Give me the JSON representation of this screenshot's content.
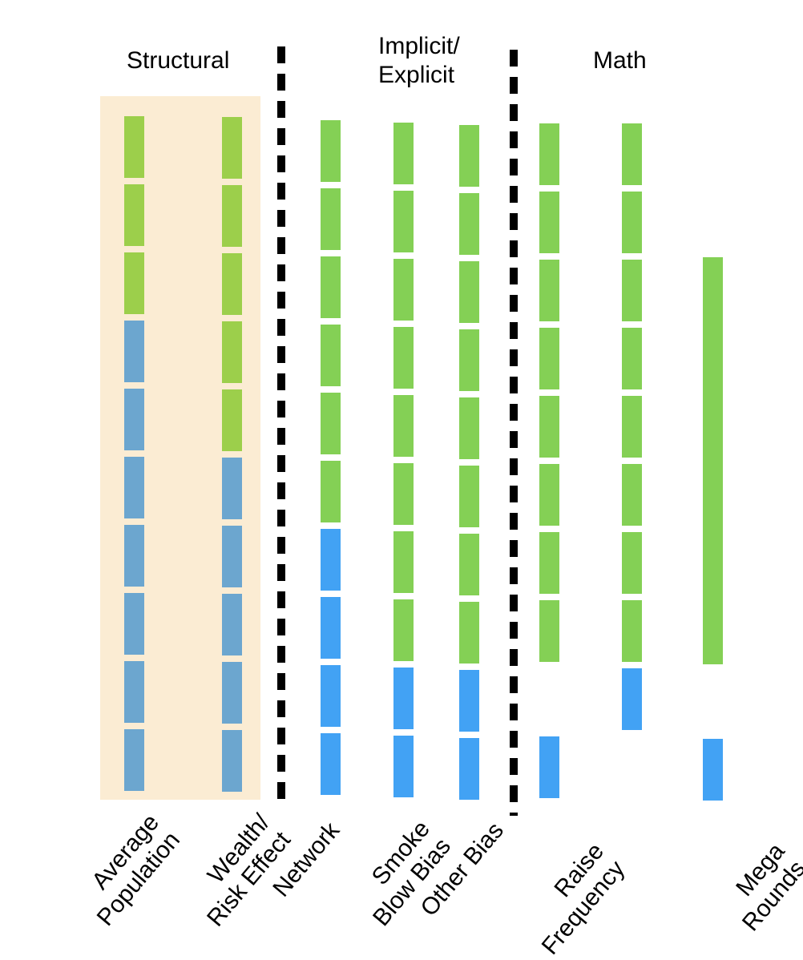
{
  "groups": {
    "structural": "Structural",
    "implicit_line1": "Implicit/",
    "implicit_line2": "Explicit",
    "math": "Math"
  },
  "colors": {
    "structural_bg": "#fbecd3",
    "green_structural": "#9ccf4b",
    "blue_structural": "#6ca6cf",
    "green": "#84d055",
    "blue": "#42a2f4",
    "divider": "#000000"
  },
  "columns": [
    {
      "id": "average-population",
      "label_lines": [
        "Average",
        "Population"
      ],
      "segments": [
        "green",
        "green",
        "green",
        "blue",
        "blue",
        "blue",
        "blue",
        "blue",
        "blue",
        "blue"
      ]
    },
    {
      "id": "wealth-risk-effect",
      "label_lines": [
        "Wealth/",
        "Risk Effect"
      ],
      "segments": [
        "green",
        "green",
        "green",
        "green",
        "green",
        "blue",
        "blue",
        "blue",
        "blue",
        "blue"
      ]
    },
    {
      "id": "network",
      "label_lines": [
        "Network"
      ],
      "segments": [
        "green",
        "green",
        "green",
        "green",
        "green",
        "green",
        "blue",
        "blue",
        "blue",
        "blue"
      ]
    },
    {
      "id": "smoke-blow-bias",
      "label_lines": [
        "Smoke",
        "Blow Bias"
      ],
      "segments": [
        "green",
        "green",
        "green",
        "green",
        "green",
        "green",
        "green",
        "green",
        "blue",
        "blue"
      ]
    },
    {
      "id": "other-bias",
      "label_lines": [
        "Other Bias"
      ],
      "segments": [
        "green",
        "green",
        "green",
        "green",
        "green",
        "green",
        "green",
        "green",
        "blue",
        "blue"
      ]
    },
    {
      "id": "raise-frequency",
      "label_lines": [
        "Raise",
        "Frequency"
      ],
      "segments": [
        "green",
        "green",
        "green",
        "green",
        "green",
        "green",
        "green",
        "green",
        "none",
        "blue"
      ]
    },
    {
      "id": "math-col-2",
      "label_lines": [],
      "segments": [
        "green",
        "green",
        "green",
        "green",
        "green",
        "green",
        "green",
        "green",
        "blue",
        "none"
      ]
    },
    {
      "id": "mega-rounds",
      "label_lines": [
        "Mega",
        "Rounds"
      ],
      "segments": [
        "none",
        "none",
        "green-tall",
        "blue"
      ]
    }
  ]
}
